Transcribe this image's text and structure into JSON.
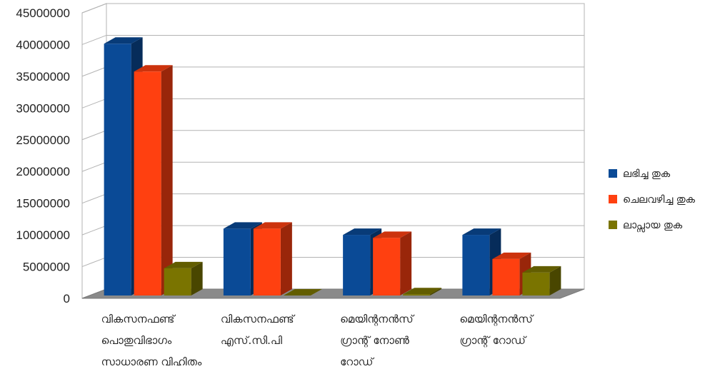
{
  "chart_data": {
    "type": "bar",
    "categories": [
      [
        "വികസനഫണ്ട്",
        "പൊതുവിഭാഗം",
        "സാധാരണ വിഹിതം"
      ],
      [
        "വികസനഫണ്ട്",
        "എസ്.സി.പി"
      ],
      [
        "മെയിന്റനൻസ്",
        "ഗ്രാന്റ് നോൺ",
        "റോഡ്"
      ],
      [
        "മെയിന്റനൻസ്",
        "ഗ്രാന്റ് റോഡ്"
      ]
    ],
    "series": [
      {
        "name": "ലഭിച്ച തുക",
        "values": [
          40700000,
          10800000,
          9800000,
          9800000
        ],
        "color": "#0a4a96"
      },
      {
        "name": "ചെലവഴിച്ച തുക",
        "values": [
          36200000,
          10800000,
          9300000,
          5900000
        ],
        "color": "#ff4010"
      },
      {
        "name": "ലാപ്സായ തുക",
        "values": [
          4400000,
          0,
          200000,
          3700000
        ],
        "color": "#7a7400"
      }
    ],
    "ylim": [
      0,
      45000000
    ],
    "yticks": [
      "0",
      "5000000",
      "10000000",
      "15000000",
      "20000000",
      "25000000",
      "30000000",
      "35000000",
      "40000000",
      "45000000"
    ],
    "grid": true,
    "legend_position": "right",
    "title": "",
    "xlabel": "",
    "ylabel": ""
  }
}
